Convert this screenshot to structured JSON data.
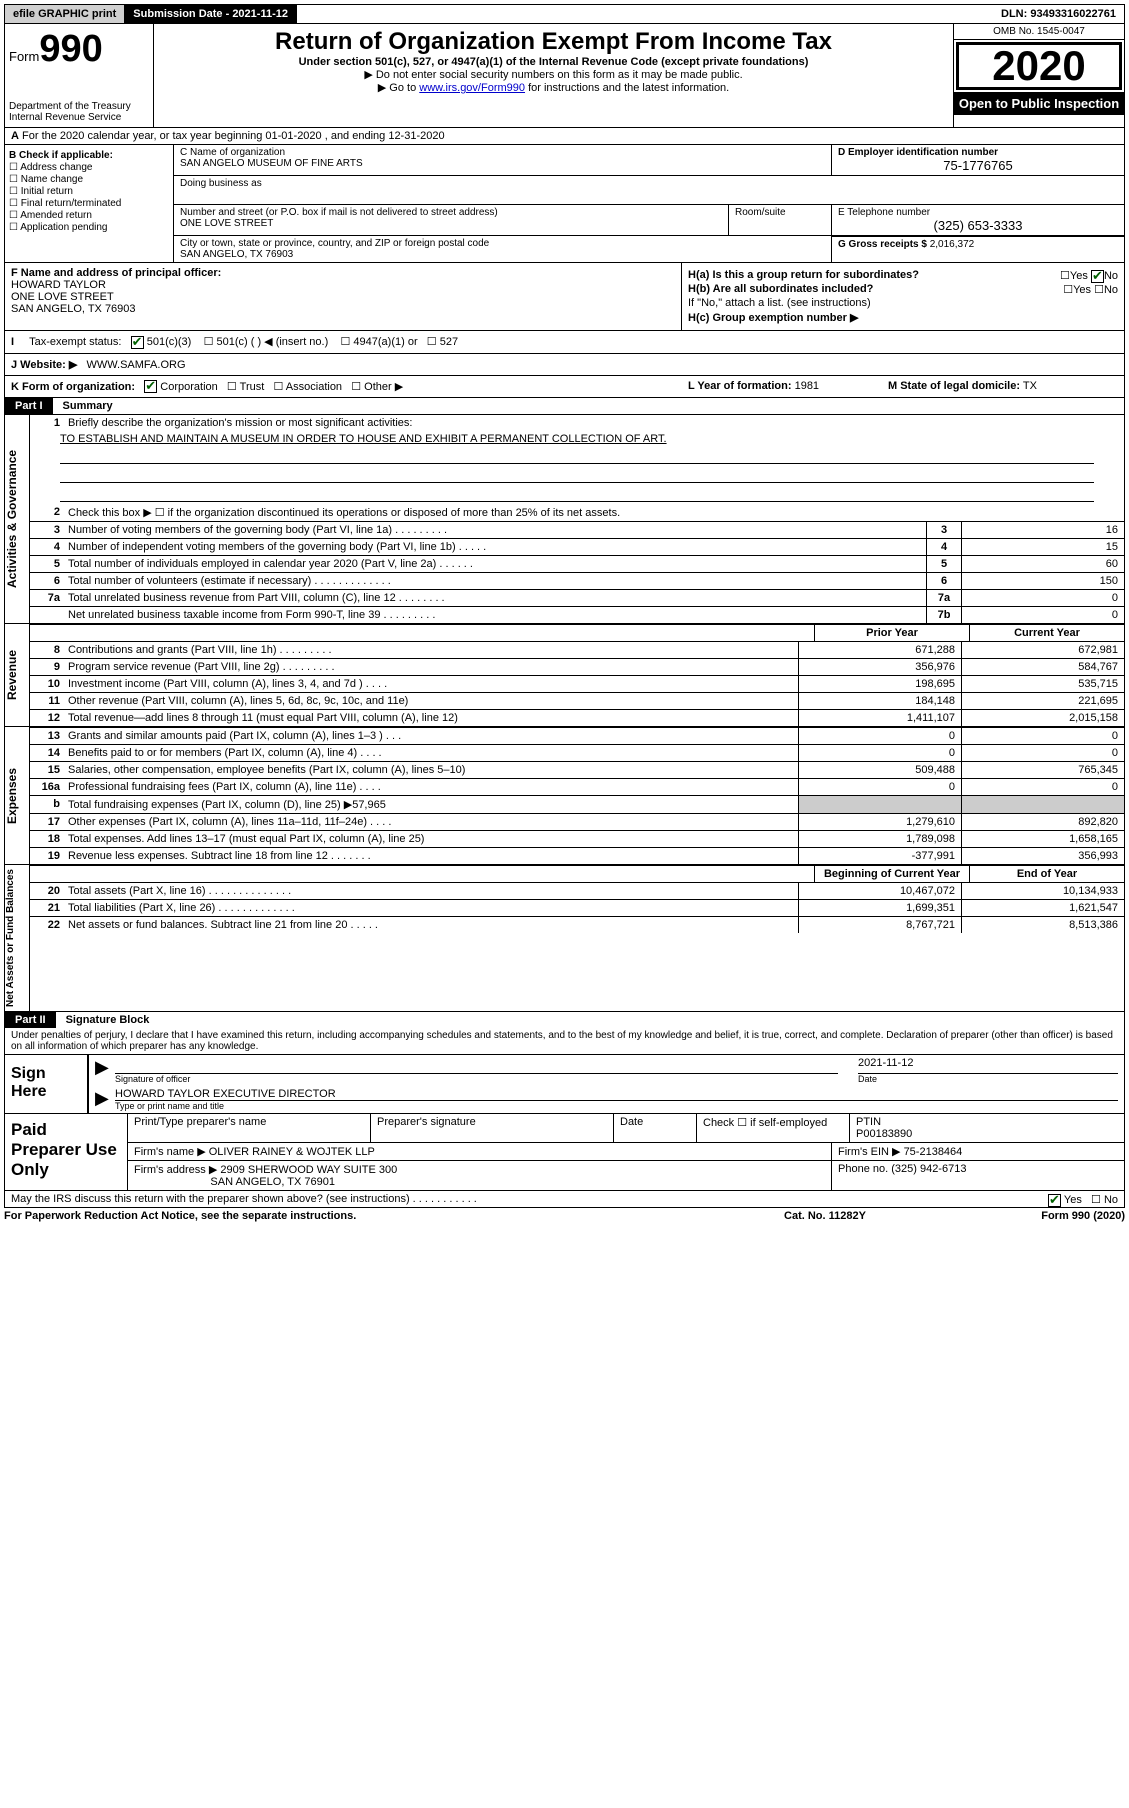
{
  "topbar": {
    "efile": "efile GRAPHIC print",
    "submission": "Submission Date - 2021-11-12",
    "dln": "DLN: 93493316022761"
  },
  "header": {
    "form_label": "Form",
    "form_num": "990",
    "dept": "Department of the Treasury\nInternal Revenue Service",
    "title": "Return of Organization Exempt From Income Tax",
    "sub": "Under section 501(c), 527, or 4947(a)(1) of the Internal Revenue Code (except private foundations)",
    "note1": "▶ Do not enter social security numbers on this form as it may be made public.",
    "note2_pre": "▶ Go to ",
    "note2_link": "www.irs.gov/Form990",
    "note2_post": " for instructions and the latest information.",
    "omb": "OMB No. 1545-0047",
    "year": "2020",
    "open": "Open to Public Inspection"
  },
  "row_a": "For the 2020 calendar year, or tax year beginning 01-01-2020    , and ending 12-31-2020",
  "col_b": {
    "title": "B Check if applicable:",
    "items": [
      "Address change",
      "Name change",
      "Initial return",
      "Final return/terminated",
      "Amended return",
      "Application pending"
    ]
  },
  "org": {
    "c_label": "C Name of organization",
    "name": "SAN ANGELO MUSEUM OF FINE ARTS",
    "dba_label": "Doing business as",
    "addr_label": "Number and street (or P.O. box if mail is not delivered to street address)",
    "addr": "ONE LOVE STREET",
    "room_label": "Room/suite",
    "city_label": "City or town, state or province, country, and ZIP or foreign postal code",
    "city": "SAN ANGELO, TX  76903",
    "d_label": "D Employer identification number",
    "ein": "75-1776765",
    "e_label": "E Telephone number",
    "phone": "(325) 653-3333",
    "g_label": "G Gross receipts $",
    "gross": "2,016,372"
  },
  "f": {
    "label": "F  Name and address of principal officer:",
    "name": "HOWARD TAYLOR",
    "line1": "ONE LOVE STREET",
    "line2": "SAN ANGELO, TX  76903"
  },
  "h": {
    "a": "H(a)  Is this a group return for subordinates?",
    "b": "H(b)  Are all subordinates included?",
    "note": "If \"No,\" attach a list. (see instructions)",
    "c": "H(c)  Group exemption number ▶",
    "yes": "Yes",
    "no": "No"
  },
  "i": {
    "label": "Tax-exempt status:",
    "t1": "501(c)(3)",
    "t2": "501(c) (  ) ◀ (insert no.)",
    "t3": "4947(a)(1) or",
    "t4": "527"
  },
  "j": {
    "label": "J   Website: ▶",
    "val": "WWW.SAMFA.ORG"
  },
  "k": {
    "label": "K Form of organization:",
    "o1": "Corporation",
    "o2": "Trust",
    "o3": "Association",
    "o4": "Other ▶",
    "l_label": "L Year of formation:",
    "l_val": "1981",
    "m_label": "M State of legal domicile:",
    "m_val": "TX"
  },
  "part1": {
    "hdr": "Part I",
    "title": "Summary",
    "q1": "Briefly describe the organization's mission or most significant activities:",
    "mission": "TO ESTABLISH AND MAINTAIN A MUSEUM IN ORDER TO HOUSE AND EXHIBIT A PERMANENT COLLECTION OF ART.",
    "q2": "Check this box ▶ ☐  if the organization discontinued its operations or disposed of more than 25% of its net assets.",
    "lines_single": [
      {
        "n": "3",
        "d": "Number of voting members of the governing body (Part VI, line 1a)   .    .    .    .    .    .    .    .    .",
        "b": "3",
        "v": "16"
      },
      {
        "n": "4",
        "d": "Number of independent voting members of the governing body (Part VI, line 1b)   .    .    .    .    .",
        "b": "4",
        "v": "15"
      },
      {
        "n": "5",
        "d": "Total number of individuals employed in calendar year 2020 (Part V, line 2a)   .    .    .    .    .    .",
        "b": "5",
        "v": "60"
      },
      {
        "n": "6",
        "d": "Total number of volunteers (estimate if necessary)   .    .    .    .    .    .    .    .    .    .    .    .    .",
        "b": "6",
        "v": "150"
      },
      {
        "n": "7a",
        "d": "Total unrelated business revenue from Part VIII, column (C), line 12   .    .    .    .    .    .    .    .",
        "b": "7a",
        "v": "0"
      },
      {
        "n": "",
        "d": "Net unrelated business taxable income from Form 990-T, line 39   .    .    .    .    .    .    .    .    .",
        "b": "7b",
        "v": "0"
      }
    ],
    "col_prior": "Prior Year",
    "col_current": "Current Year",
    "revenue": [
      {
        "n": "8",
        "d": "Contributions and grants (Part VIII, line 1h)   .    .    .    .    .    .    .    .    .",
        "p": "671,288",
        "c": "672,981"
      },
      {
        "n": "9",
        "d": "Program service revenue (Part VIII, line 2g)   .    .    .    .    .    .    .    .    .",
        "p": "356,976",
        "c": "584,767"
      },
      {
        "n": "10",
        "d": "Investment income (Part VIII, column (A), lines 3, 4, and 7d )   .    .    .    .",
        "p": "198,695",
        "c": "535,715"
      },
      {
        "n": "11",
        "d": "Other revenue (Part VIII, column (A), lines 5, 6d, 8c, 9c, 10c, and 11e)",
        "p": "184,148",
        "c": "221,695"
      },
      {
        "n": "12",
        "d": "Total revenue—add lines 8 through 11 (must equal Part VIII, column (A), line 12)",
        "p": "1,411,107",
        "c": "2,015,158"
      }
    ],
    "expenses": [
      {
        "n": "13",
        "d": "Grants and similar amounts paid (Part IX, column (A), lines 1–3 )   .    .    .",
        "p": "0",
        "c": "0"
      },
      {
        "n": "14",
        "d": "Benefits paid to or for members (Part IX, column (A), line 4)   .    .    .    .",
        "p": "0",
        "c": "0"
      },
      {
        "n": "15",
        "d": "Salaries, other compensation, employee benefits (Part IX, column (A), lines 5–10)",
        "p": "509,488",
        "c": "765,345"
      },
      {
        "n": "16a",
        "d": "Professional fundraising fees (Part IX, column (A), line 11e)   .    .    .    .",
        "p": "0",
        "c": "0"
      },
      {
        "n": "b",
        "d": "Total fundraising expenses (Part IX, column (D), line 25) ▶57,965",
        "p": "",
        "c": ""
      },
      {
        "n": "17",
        "d": "Other expenses (Part IX, column (A), lines 11a–11d, 11f–24e)   .    .    .    .",
        "p": "1,279,610",
        "c": "892,820"
      },
      {
        "n": "18",
        "d": "Total expenses. Add lines 13–17 (must equal Part IX, column (A), line 25)",
        "p": "1,789,098",
        "c": "1,658,165"
      },
      {
        "n": "19",
        "d": "Revenue less expenses. Subtract line 18 from line 12   .    .    .    .    .    .    .",
        "p": "-377,991",
        "c": "356,993"
      }
    ],
    "col_begin": "Beginning of Current Year",
    "col_end": "End of Year",
    "net": [
      {
        "n": "20",
        "d": "Total assets (Part X, line 16)   .    .    .    .    .    .    .    .    .    .    .    .    .    .",
        "p": "10,467,072",
        "c": "10,134,933"
      },
      {
        "n": "21",
        "d": "Total liabilities (Part X, line 26)   .    .    .    .    .    .    .    .    .    .    .    .    .",
        "p": "1,699,351",
        "c": "1,621,547"
      },
      {
        "n": "22",
        "d": "Net assets or fund balances. Subtract line 21 from line 20   .    .    .    .    .",
        "p": "8,767,721",
        "c": "8,513,386"
      }
    ],
    "vlabels": {
      "gov": "Activities & Governance",
      "rev": "Revenue",
      "exp": "Expenses",
      "net": "Net Assets or Fund Balances"
    }
  },
  "part2": {
    "hdr": "Part II",
    "title": "Signature Block",
    "perjury": "Under penalties of perjury, I declare that I have examined this return, including accompanying schedules and statements, and to the best of my knowledge and belief, it is true, correct, and complete. Declaration of preparer (other than officer) is based on all information of which preparer has any knowledge."
  },
  "sign": {
    "left": "Sign Here",
    "sig_of": "Signature of officer",
    "date_lbl": "Date",
    "date": "2021-11-12",
    "name": "HOWARD TAYLOR  EXECUTIVE DIRECTOR",
    "type_lbl": "Type or print name and title"
  },
  "prep": {
    "left": "Paid Preparer Use Only",
    "c1": "Print/Type preparer's name",
    "c2": "Preparer's signature",
    "c3": "Date",
    "c4": "Check ☐  if self-employed",
    "c5": "PTIN",
    "ptin": "P00183890",
    "firm_lbl": "Firm's name      ▶",
    "firm": "OLIVER RAINEY & WOJTEK LLP",
    "ein_lbl": "Firm's EIN ▶",
    "ein": "75-2138464",
    "addr_lbl": "Firm's address ▶",
    "addr1": "2909 SHERWOOD WAY SUITE 300",
    "addr2": "SAN ANGELO, TX  76901",
    "phone_lbl": "Phone no.",
    "phone": "(325) 942-6713"
  },
  "may_irs": "May the IRS discuss this return with the preparer shown above? (see instructions)   .    .    .    .    .    .    .    .    .    .    .",
  "footer": {
    "left": "For Paperwork Reduction Act Notice, see the separate instructions.",
    "mid": "Cat. No. 11282Y",
    "right_pre": "Form ",
    "right_b": "990",
    "right_post": " (2020)"
  }
}
